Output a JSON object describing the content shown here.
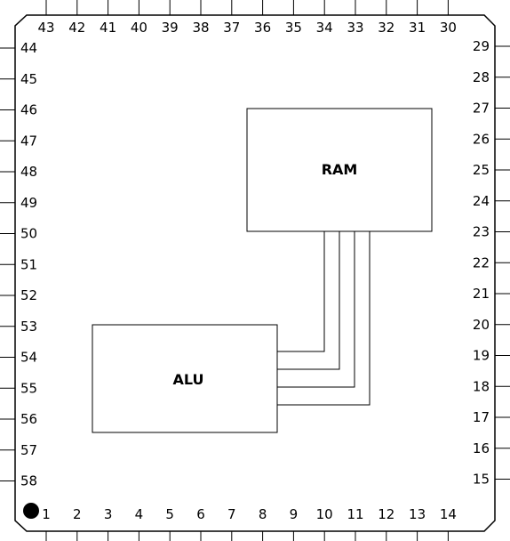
{
  "chip": {
    "orientation_mark": "pin-1-dot",
    "pins": {
      "bottom": [
        "1",
        "2",
        "3",
        "4",
        "5",
        "6",
        "7",
        "8",
        "9",
        "10",
        "11",
        "12",
        "13",
        "14"
      ],
      "right": [
        "15",
        "16",
        "17",
        "18",
        "19",
        "20",
        "21",
        "22",
        "23",
        "24",
        "25",
        "26",
        "27",
        "28",
        "29"
      ],
      "top": [
        "30",
        "31",
        "32",
        "33",
        "34",
        "35",
        "36",
        "37",
        "38",
        "39",
        "40",
        "41",
        "42",
        "43"
      ],
      "left": [
        "44",
        "45",
        "46",
        "47",
        "48",
        "49",
        "50",
        "51",
        "52",
        "53",
        "54",
        "55",
        "56",
        "57",
        "58"
      ]
    }
  },
  "blocks": {
    "ram": {
      "label": "RAM"
    },
    "alu": {
      "label": "ALU"
    }
  },
  "bus": {
    "from": "ram",
    "to": "alu",
    "line_count": 4
  }
}
